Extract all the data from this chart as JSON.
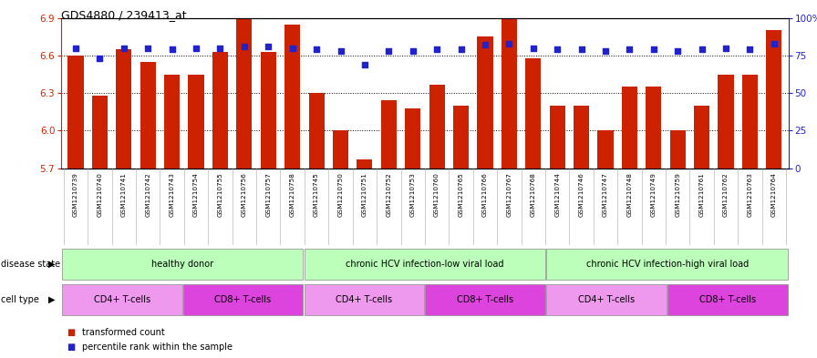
{
  "title": "GDS4880 / 239413_at",
  "samples": [
    "GSM1210739",
    "GSM1210740",
    "GSM1210741",
    "GSM1210742",
    "GSM1210743",
    "GSM1210754",
    "GSM1210755",
    "GSM1210756",
    "GSM1210757",
    "GSM1210758",
    "GSM1210745",
    "GSM1210750",
    "GSM1210751",
    "GSM1210752",
    "GSM1210753",
    "GSM1210760",
    "GSM1210765",
    "GSM1210766",
    "GSM1210767",
    "GSM1210768",
    "GSM1210744",
    "GSM1210746",
    "GSM1210747",
    "GSM1210748",
    "GSM1210749",
    "GSM1210759",
    "GSM1210761",
    "GSM1210762",
    "GSM1210763",
    "GSM1210764"
  ],
  "bar_values": [
    6.6,
    6.28,
    6.65,
    6.55,
    6.45,
    6.45,
    6.63,
    6.9,
    6.63,
    6.85,
    6.3,
    6.0,
    5.77,
    6.24,
    6.18,
    6.37,
    6.2,
    6.75,
    6.92,
    6.58,
    6.2,
    6.2,
    6.0,
    6.35,
    6.35,
    6.0,
    6.2,
    6.45,
    6.45,
    6.8
  ],
  "percentile_values": [
    80,
    73,
    80,
    80,
    79,
    80,
    80,
    81,
    81,
    80,
    79,
    78,
    69,
    78,
    78,
    79,
    79,
    82,
    83,
    80,
    79,
    79,
    78,
    79,
    79,
    78,
    79,
    80,
    79,
    83
  ],
  "ymin": 5.7,
  "ymax": 6.9,
  "yticks_left": [
    5.7,
    6.0,
    6.3,
    6.6,
    6.9
  ],
  "bar_color": "#cc2200",
  "dot_color": "#2222cc",
  "bg_color": "#ffffff",
  "xtick_bg": "#d8d8d8",
  "disease_groups": [
    {
      "label": "healthy donor",
      "start": 0,
      "end": 10,
      "color": "#bbffbb"
    },
    {
      "label": "chronic HCV infection-low viral load",
      "start": 10,
      "end": 20,
      "color": "#bbffbb"
    },
    {
      "label": "chronic HCV infection-high viral load",
      "start": 20,
      "end": 30,
      "color": "#bbffbb"
    }
  ],
  "cell_groups": [
    {
      "label": "CD4+ T-cells",
      "start": 0,
      "end": 5,
      "color": "#ee99ee"
    },
    {
      "label": "CD8+ T-cells",
      "start": 5,
      "end": 10,
      "color": "#dd44dd"
    },
    {
      "label": "CD4+ T-cells",
      "start": 10,
      "end": 15,
      "color": "#ee99ee"
    },
    {
      "label": "CD8+ T-cells",
      "start": 15,
      "end": 20,
      "color": "#dd44dd"
    },
    {
      "label": "CD4+ T-cells",
      "start": 20,
      "end": 25,
      "color": "#ee99ee"
    },
    {
      "label": "CD8+ T-cells",
      "start": 25,
      "end": 30,
      "color": "#dd44dd"
    }
  ],
  "legend": [
    {
      "label": "transformed count",
      "color": "#cc2200"
    },
    {
      "label": "percentile rank within the sample",
      "color": "#2222cc"
    }
  ]
}
